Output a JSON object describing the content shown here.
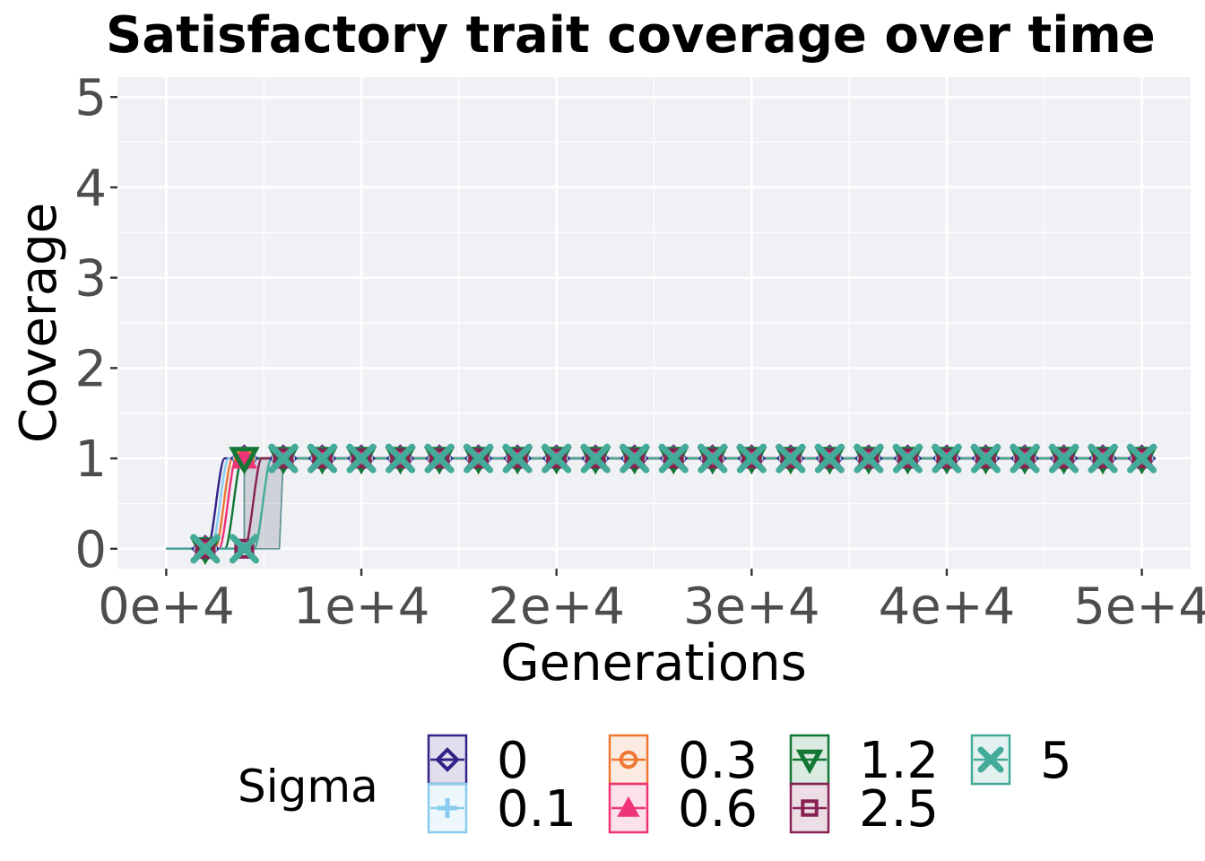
{
  "chart_data": {
    "type": "line",
    "title": "Satisfactory trait coverage over time",
    "xlabel": "Generations",
    "ylabel": "Coverage",
    "xlim": [
      -2500,
      52500
    ],
    "ylim": [
      -0.22,
      5.22
    ],
    "x_ticks": [
      0,
      10000,
      20000,
      30000,
      40000,
      50000
    ],
    "x_tick_labels": [
      "0e+4",
      "1e+4",
      "2e+4",
      "3e+4",
      "4e+4",
      "5e+4"
    ],
    "y_ticks": [
      0,
      1,
      2,
      3,
      4,
      5
    ],
    "y_tick_labels": [
      "0",
      "1",
      "2",
      "3",
      "4",
      "5"
    ],
    "grid": true,
    "background": "#f0f1f5",
    "legend_title": "Sigma",
    "legend_position": "bottom",
    "x": [
      0,
      2000,
      4000,
      6000,
      8000,
      10000,
      12000,
      14000,
      16000,
      18000,
      20000,
      22000,
      24000,
      26000,
      28000,
      30000,
      32000,
      34000,
      36000,
      38000,
      40000,
      42000,
      44000,
      46000,
      48000,
      50000
    ],
    "marker_x": [
      2000,
      4000,
      6000,
      8000,
      10000,
      12000,
      14000,
      16000,
      18000,
      20000,
      22000,
      24000,
      26000,
      28000,
      30000,
      32000,
      34000,
      36000,
      38000,
      40000,
      42000,
      44000,
      46000,
      48000,
      50000
    ],
    "series": [
      {
        "name": "0",
        "color": "#332288",
        "marker": "diamond",
        "rise": 2100,
        "values": [
          0,
          0,
          1,
          1,
          1,
          1,
          1,
          1,
          1,
          1,
          1,
          1,
          1,
          1,
          1,
          1,
          1,
          1,
          1,
          1,
          1,
          1,
          1,
          1,
          1,
          1
        ]
      },
      {
        "name": "0.1",
        "color": "#88ccee",
        "marker": "plus",
        "rise": 2300,
        "values": [
          0,
          0,
          1,
          1,
          1,
          1,
          1,
          1,
          1,
          1,
          1,
          1,
          1,
          1,
          1,
          1,
          1,
          1,
          1,
          1,
          1,
          1,
          1,
          1,
          1,
          1
        ]
      },
      {
        "name": "0.3",
        "color": "#ee7733",
        "marker": "circle",
        "rise": 2500,
        "values": [
          0,
          0,
          1,
          1,
          1,
          1,
          1,
          1,
          1,
          1,
          1,
          1,
          1,
          1,
          1,
          1,
          1,
          1,
          1,
          1,
          1,
          1,
          1,
          1,
          1,
          1
        ]
      },
      {
        "name": "0.6",
        "color": "#ee3377",
        "marker": "triangle-up",
        "rise": 2700,
        "values": [
          0,
          0,
          1,
          1,
          1,
          1,
          1,
          1,
          1,
          1,
          1,
          1,
          1,
          1,
          1,
          1,
          1,
          1,
          1,
          1,
          1,
          1,
          1,
          1,
          1,
          1
        ]
      },
      {
        "name": "1.2",
        "color": "#117733",
        "marker": "triangle-down",
        "rise": 3000,
        "values": [
          0,
          0,
          1,
          1,
          1,
          1,
          1,
          1,
          1,
          1,
          1,
          1,
          1,
          1,
          1,
          1,
          1,
          1,
          1,
          1,
          1,
          1,
          1,
          1,
          1,
          1
        ]
      },
      {
        "name": "2.5",
        "color": "#882255",
        "marker": "square",
        "rise": 4000,
        "values": [
          0,
          0,
          0,
          1,
          1,
          1,
          1,
          1,
          1,
          1,
          1,
          1,
          1,
          1,
          1,
          1,
          1,
          1,
          1,
          1,
          1,
          1,
          1,
          1,
          1,
          1
        ]
      },
      {
        "name": "5",
        "color": "#44aa99",
        "marker": "x",
        "rise": 4500,
        "values": [
          0,
          0,
          0,
          1,
          1,
          1,
          1,
          1,
          1,
          1,
          1,
          1,
          1,
          1,
          1,
          1,
          1,
          1,
          1,
          1,
          1,
          1,
          1,
          1,
          1,
          1
        ]
      }
    ]
  }
}
